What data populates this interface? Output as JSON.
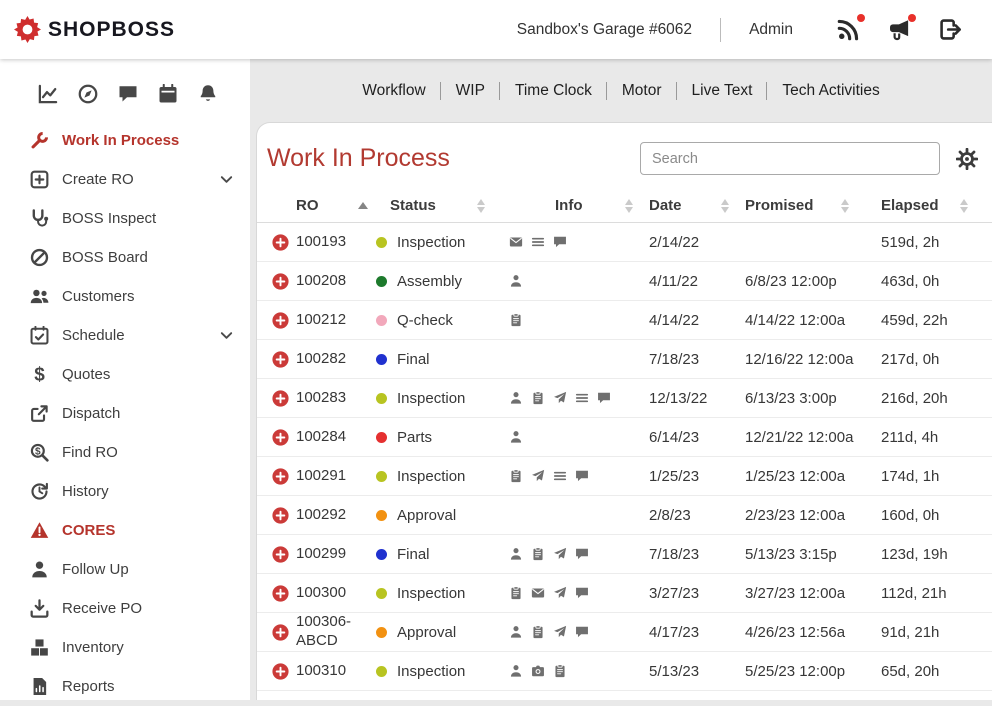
{
  "colors": {
    "accent_red": "#b5342c",
    "title_red": "#b23a31",
    "row_plus_red": "#cb3a38",
    "notification_badge": "#e8302a"
  },
  "header": {
    "logo_text": "SHOPBOSS",
    "shop_name": "Sandbox's Garage #6062",
    "admin_label": "Admin",
    "icons": [
      {
        "name": "live-feed-icon",
        "badge": true
      },
      {
        "name": "announcements-icon",
        "badge": true
      },
      {
        "name": "logout-icon",
        "badge": false
      }
    ]
  },
  "sidebar": {
    "quick_icons": [
      "activity-chart-icon",
      "dashboard-icon",
      "chat-icon",
      "calendar-icon",
      "bell-icon"
    ],
    "items": [
      {
        "label": "Work In Process",
        "icon": "wrench-icon",
        "active": true
      },
      {
        "label": "Create RO",
        "icon": "plus-square-icon",
        "chevron": true
      },
      {
        "label": "BOSS Inspect",
        "icon": "inspect-icon"
      },
      {
        "label": "BOSS Board",
        "icon": "board-icon"
      },
      {
        "label": "Customers",
        "icon": "customers-icon"
      },
      {
        "label": "Schedule",
        "icon": "schedule-icon",
        "chevron": true
      },
      {
        "label": "Quotes",
        "icon": "dollar-icon"
      },
      {
        "label": "Dispatch",
        "icon": "dispatch-icon"
      },
      {
        "label": "Find RO",
        "icon": "find-ro-icon"
      },
      {
        "label": "History",
        "icon": "history-icon"
      },
      {
        "label": "CORES",
        "icon": "warning-icon",
        "highlight": true
      },
      {
        "label": "Follow Up",
        "icon": "person-icon"
      },
      {
        "label": "Receive PO",
        "icon": "receive-icon"
      },
      {
        "label": "Inventory",
        "icon": "inventory-icon"
      },
      {
        "label": "Reports",
        "icon": "reports-icon"
      }
    ]
  },
  "top_nav": [
    "Workflow",
    "WIP",
    "Time Clock",
    "Motor",
    "Live Text",
    "Tech Activities"
  ],
  "wip": {
    "title": "Work In Process",
    "search_placeholder": "Search",
    "columns": [
      {
        "label": "RO",
        "sort": "asc"
      },
      {
        "label": "Status",
        "sort": "both"
      },
      {
        "label": "Info",
        "sort": "both"
      },
      {
        "label": "Date",
        "sort": "both"
      },
      {
        "label": "Promised",
        "sort": "both"
      },
      {
        "label": "Elapsed",
        "sort": "both"
      }
    ],
    "status_colors": {
      "Inspection": "#b8c421",
      "Assembly": "#1d7a2c",
      "Q-check": "#f2a8bb",
      "Final": "#2031cf",
      "Parts": "#e53030",
      "Approval": "#f29111"
    },
    "rows": [
      {
        "ro": "100193",
        "status": "Inspection",
        "info": [
          "envelope-icon",
          "list-icon",
          "comment-icon"
        ],
        "date": "2/14/22",
        "promised": "",
        "elapsed": "519d, 2h"
      },
      {
        "ro": "100208",
        "status": "Assembly",
        "info": [
          "technician-icon"
        ],
        "date": "4/11/22",
        "promised": "6/8/23 12:00p",
        "elapsed": "463d, 0h"
      },
      {
        "ro": "100212",
        "status": "Q-check",
        "info": [
          "clipboard-icon"
        ],
        "date": "4/14/22",
        "promised": "4/14/22 12:00a",
        "elapsed": "459d, 22h"
      },
      {
        "ro": "100282",
        "status": "Final",
        "info": [],
        "date": "7/18/23",
        "promised": "12/16/22 12:00a",
        "elapsed": "217d, 0h"
      },
      {
        "ro": "100283",
        "status": "Inspection",
        "info": [
          "technician-icon",
          "clipboard-icon",
          "send-icon",
          "list-icon",
          "comment-icon"
        ],
        "date": "12/13/22",
        "promised": "6/13/23 3:00p",
        "elapsed": "216d, 20h"
      },
      {
        "ro": "100284",
        "status": "Parts",
        "info": [
          "technician-icon"
        ],
        "date": "6/14/23",
        "promised": "12/21/22 12:00a",
        "elapsed": "211d, 4h"
      },
      {
        "ro": "100291",
        "status": "Inspection",
        "info": [
          "clipboard-icon",
          "send-icon",
          "list-icon",
          "comment-icon"
        ],
        "date": "1/25/23",
        "promised": "1/25/23 12:00a",
        "elapsed": "174d, 1h"
      },
      {
        "ro": "100292",
        "status": "Approval",
        "info": [],
        "date": "2/8/23",
        "promised": "2/23/23 12:00a",
        "elapsed": "160d, 0h"
      },
      {
        "ro": "100299",
        "status": "Final",
        "info": [
          "technician-icon",
          "clipboard-icon",
          "send-icon",
          "comment-icon"
        ],
        "date": "7/18/23",
        "promised": "5/13/23 3:15p",
        "elapsed": "123d, 19h"
      },
      {
        "ro": "100300",
        "status": "Inspection",
        "info": [
          "clipboard-icon",
          "envelope-icon",
          "send-icon",
          "comment-icon"
        ],
        "date": "3/27/23",
        "promised": "3/27/23 12:00a",
        "elapsed": "112d, 21h"
      },
      {
        "ro": "100306-ABCD",
        "status": "Approval",
        "info": [
          "technician-icon",
          "clipboard-icon",
          "send-icon",
          "comment-icon"
        ],
        "date": "4/17/23",
        "promised": "4/26/23 12:56a",
        "elapsed": "91d, 21h"
      },
      {
        "ro": "100310",
        "status": "Inspection",
        "info": [
          "technician-icon",
          "camera-icon",
          "clipboard-icon"
        ],
        "date": "5/13/23",
        "promised": "5/25/23 12:00p",
        "elapsed": "65d, 20h"
      }
    ]
  }
}
